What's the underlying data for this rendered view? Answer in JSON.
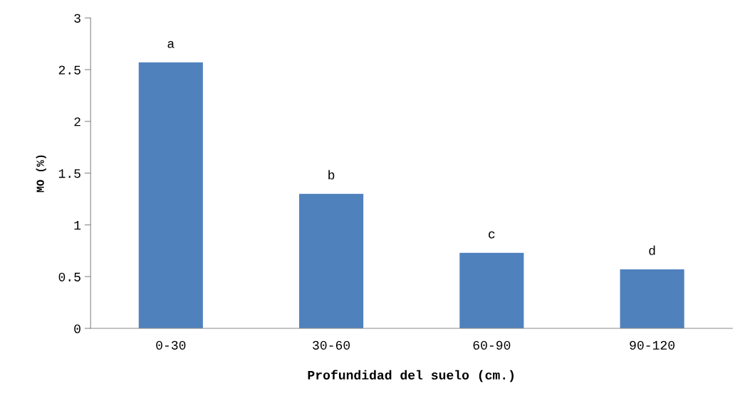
{
  "chart_data": {
    "type": "bar",
    "xlabel": "Profundidad del suelo (cm.)",
    "ylabel": "MO (%)",
    "categories": [
      "0-30",
      "30-60",
      "60-90",
      "90-120"
    ],
    "values": [
      2.57,
      1.3,
      0.73,
      0.57
    ],
    "color": "#4f81bd",
    "ylim": [
      0,
      3
    ],
    "yticks": [
      0,
      {
        "value": 0.5,
        "label": "0.5"
      },
      1,
      {
        "value": 1.5,
        "label": "1.5"
      },
      2,
      {
        "value": 2.5,
        "label": "2.5"
      },
      3
    ],
    "annotations": [
      {
        "text": "a",
        "x": "0-30",
        "y": 2.57
      },
      {
        "text": "b",
        "x": "30-60",
        "y": 1.3
      },
      {
        "text": "c",
        "x": "60-90",
        "y": 0.73
      },
      {
        "text": "d",
        "x": "90-120",
        "y": 0.57
      }
    ],
    "grid": false,
    "legend": false
  }
}
